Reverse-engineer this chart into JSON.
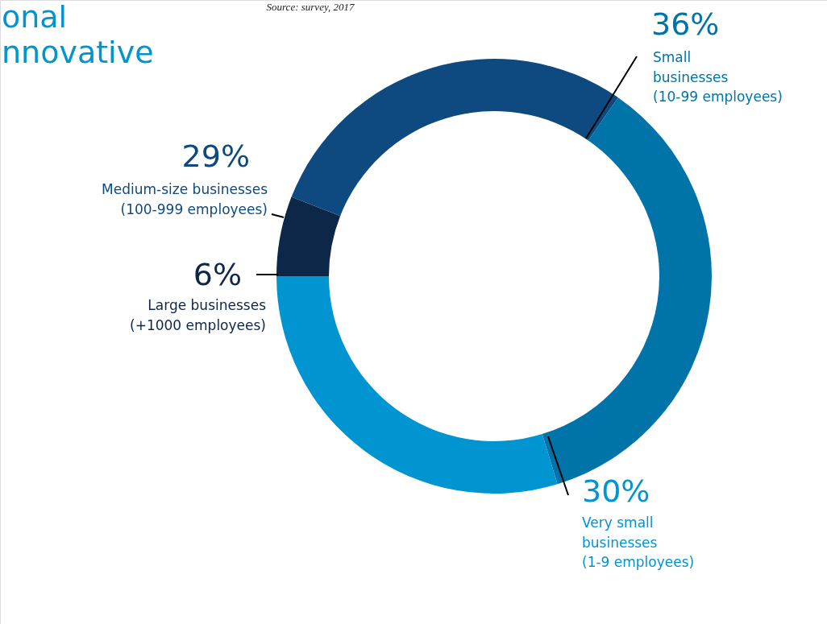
{
  "chart_data": {
    "type": "donut",
    "categories": [
      "Large businesses\n(+1000 employees)",
      "Medium-size businesses\n(100-999 employees)",
      "Small\nbusinesses\n(10-99 employees)",
      "Very small\nbusinesses\n(1-9 employees)"
    ],
    "values": [
      6,
      29,
      36,
      30
    ],
    "colors": [
      "#0c2747",
      "#0e4a80",
      "#0073a8",
      "#0094d0"
    ],
    "value_labels": [
      "6%",
      "29%",
      "36%",
      "30%"
    ],
    "annotations": [
      "onal",
      "nnovative",
      "Source: survey, 2017"
    ]
  }
}
